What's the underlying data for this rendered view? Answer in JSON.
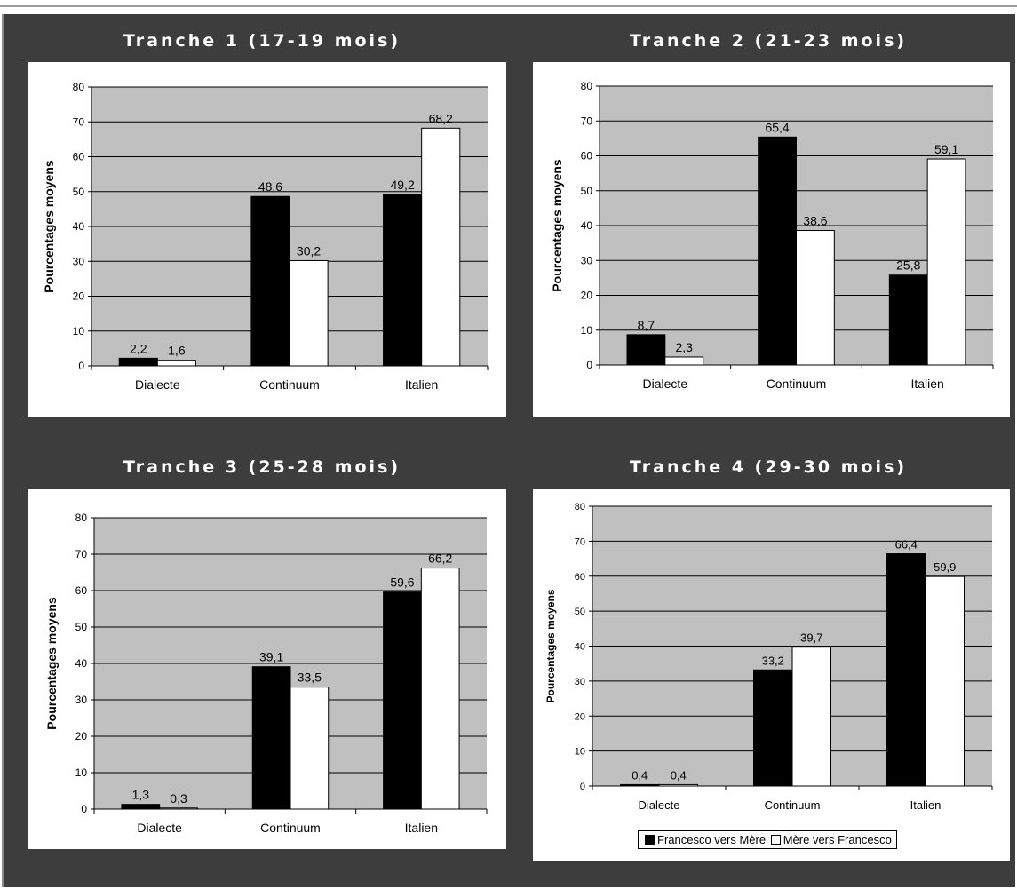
{
  "chart_data": [
    {
      "type": "bar",
      "title": "Tranche 1 (17-19 mois)",
      "ylabel": "Pourcentages moyens",
      "ylim": [
        0,
        80
      ],
      "yticks": [
        0,
        10,
        20,
        30,
        40,
        50,
        60,
        70,
        80
      ],
      "grid": true,
      "categories": [
        "Dialecte",
        "Continuum",
        "Italien"
      ],
      "series": [
        {
          "values": [
            2.2,
            48.6,
            49.2
          ],
          "labels": [
            "2,2",
            "48,6",
            "49,2"
          ],
          "color": "#000000"
        },
        {
          "values": [
            1.6,
            30.2,
            68.2
          ],
          "labels": [
            "1,6",
            "30,2",
            "68,2"
          ],
          "color": "#ffffff"
        }
      ]
    },
    {
      "type": "bar",
      "title": "Tranche 2 (21-23 mois)",
      "ylabel": "Pourcentages moyens",
      "ylim": [
        0,
        80
      ],
      "yticks": [
        0,
        10,
        20,
        30,
        40,
        50,
        60,
        70,
        80
      ],
      "grid": true,
      "categories": [
        "Dialecte",
        "Continuum",
        "Italien"
      ],
      "series": [
        {
          "values": [
            8.7,
            65.4,
            25.8
          ],
          "labels": [
            "8,7",
            "65,4",
            "25,8"
          ],
          "color": "#000000"
        },
        {
          "values": [
            2.3,
            38.6,
            59.1
          ],
          "labels": [
            "2,3",
            "38,6",
            "59,1"
          ],
          "color": "#ffffff"
        }
      ]
    },
    {
      "type": "bar",
      "title": "Tranche 3 (25-28 mois)",
      "ylabel": "Pourcentages moyens",
      "ylim": [
        0,
        80
      ],
      "yticks": [
        0,
        10,
        20,
        30,
        40,
        50,
        60,
        70,
        80
      ],
      "grid": true,
      "categories": [
        "Dialecte",
        "Continuum",
        "Italien"
      ],
      "series": [
        {
          "values": [
            1.3,
            39.1,
            59.6
          ],
          "labels": [
            "1,3",
            "39,1",
            "59,6"
          ],
          "color": "#000000"
        },
        {
          "values": [
            0.3,
            33.5,
            66.2
          ],
          "labels": [
            "0,3",
            "33,5",
            "66,2"
          ],
          "color": "#ffffff"
        }
      ]
    },
    {
      "type": "bar",
      "title": "Tranche 4 (29-30 mois)",
      "ylabel": "Pourcentages moyens",
      "ylim": [
        0,
        80
      ],
      "yticks": [
        0,
        10,
        20,
        30,
        40,
        50,
        60,
        70,
        80
      ],
      "grid": true,
      "legend_position": "bottom",
      "categories": [
        "Dialecte",
        "Continuum",
        "Italien"
      ],
      "series": [
        {
          "name": "Francesco vers Mère",
          "values": [
            0.4,
            33.2,
            66.4
          ],
          "labels": [
            "0,4",
            "33,2",
            "66,4"
          ],
          "color": "#000000"
        },
        {
          "name": "Mère vers Francesco",
          "values": [
            0.4,
            39.7,
            59.9
          ],
          "labels": [
            "0,4",
            "39,7",
            "59,9"
          ],
          "color": "#ffffff"
        }
      ]
    }
  ],
  "colors": {
    "frame": "#3d3d3d",
    "plot_area": "#c0c0c0",
    "title_text": "#ffffff"
  }
}
